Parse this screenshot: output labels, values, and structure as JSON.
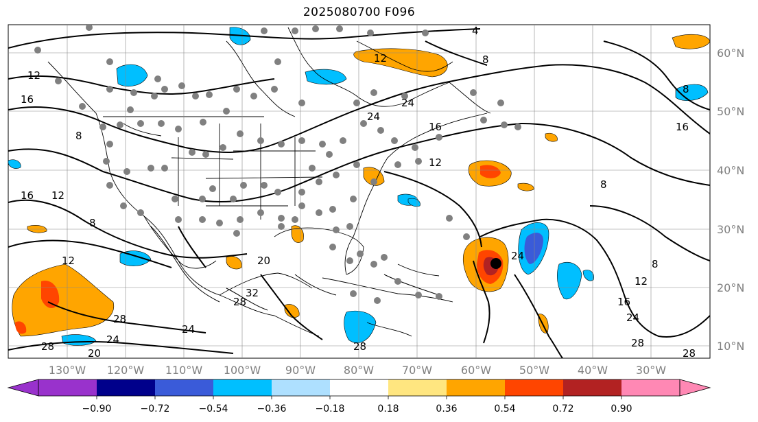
{
  "title": "2025080700 F096",
  "map": {
    "longitude_labels": [
      "130°W",
      "120°W",
      "110°W",
      "100°W",
      "90°W",
      "80°W",
      "70°W",
      "60°W",
      "50°W",
      "40°W",
      "30°W"
    ],
    "latitude_labels": [
      "60°N",
      "50°N",
      "40°N",
      "30°N",
      "20°N",
      "10°N"
    ],
    "contour_labels": [
      "4",
      "8",
      "12",
      "16",
      "20",
      "24",
      "28",
      "32"
    ],
    "station_marker_color": "#808080",
    "storm_center_marker_color": "#000000"
  },
  "colorbar": {
    "ticks": [
      "−0.90",
      "−0.72",
      "−0.54",
      "−0.36",
      "−0.18",
      "0.18",
      "0.36",
      "0.54",
      "0.72",
      "0.90"
    ],
    "colors": [
      "#9932cc",
      "#00008b",
      "#3a5bd9",
      "#00bfff",
      "#aee0ff",
      "#ffffff",
      "#ffe680",
      "#ffa500",
      "#ff4500",
      "#b22222",
      "#ff88b4"
    ]
  }
}
